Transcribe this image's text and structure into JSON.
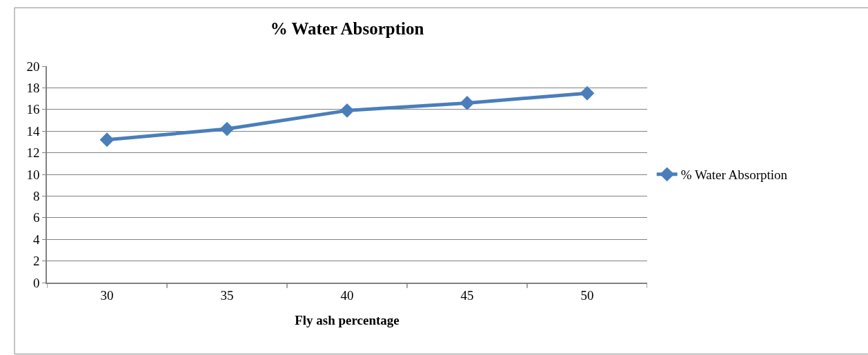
{
  "chart_data": {
    "type": "line",
    "title": "% Water Absorption",
    "xlabel": "Fly ash percentage",
    "categories": [
      "30",
      "35",
      "40",
      "45",
      "50"
    ],
    "series": [
      {
        "name": "% Water Absorption",
        "color": "#4a7ebb",
        "values": [
          13.2,
          14.2,
          15.9,
          16.6,
          17.5
        ]
      }
    ],
    "ylim": [
      0,
      20
    ],
    "yticks": [
      0,
      2,
      4,
      6,
      8,
      10,
      12,
      14,
      16,
      18,
      20
    ],
    "grid": "y",
    "legend": "right",
    "marker": "diamond",
    "line_style": "solid"
  }
}
